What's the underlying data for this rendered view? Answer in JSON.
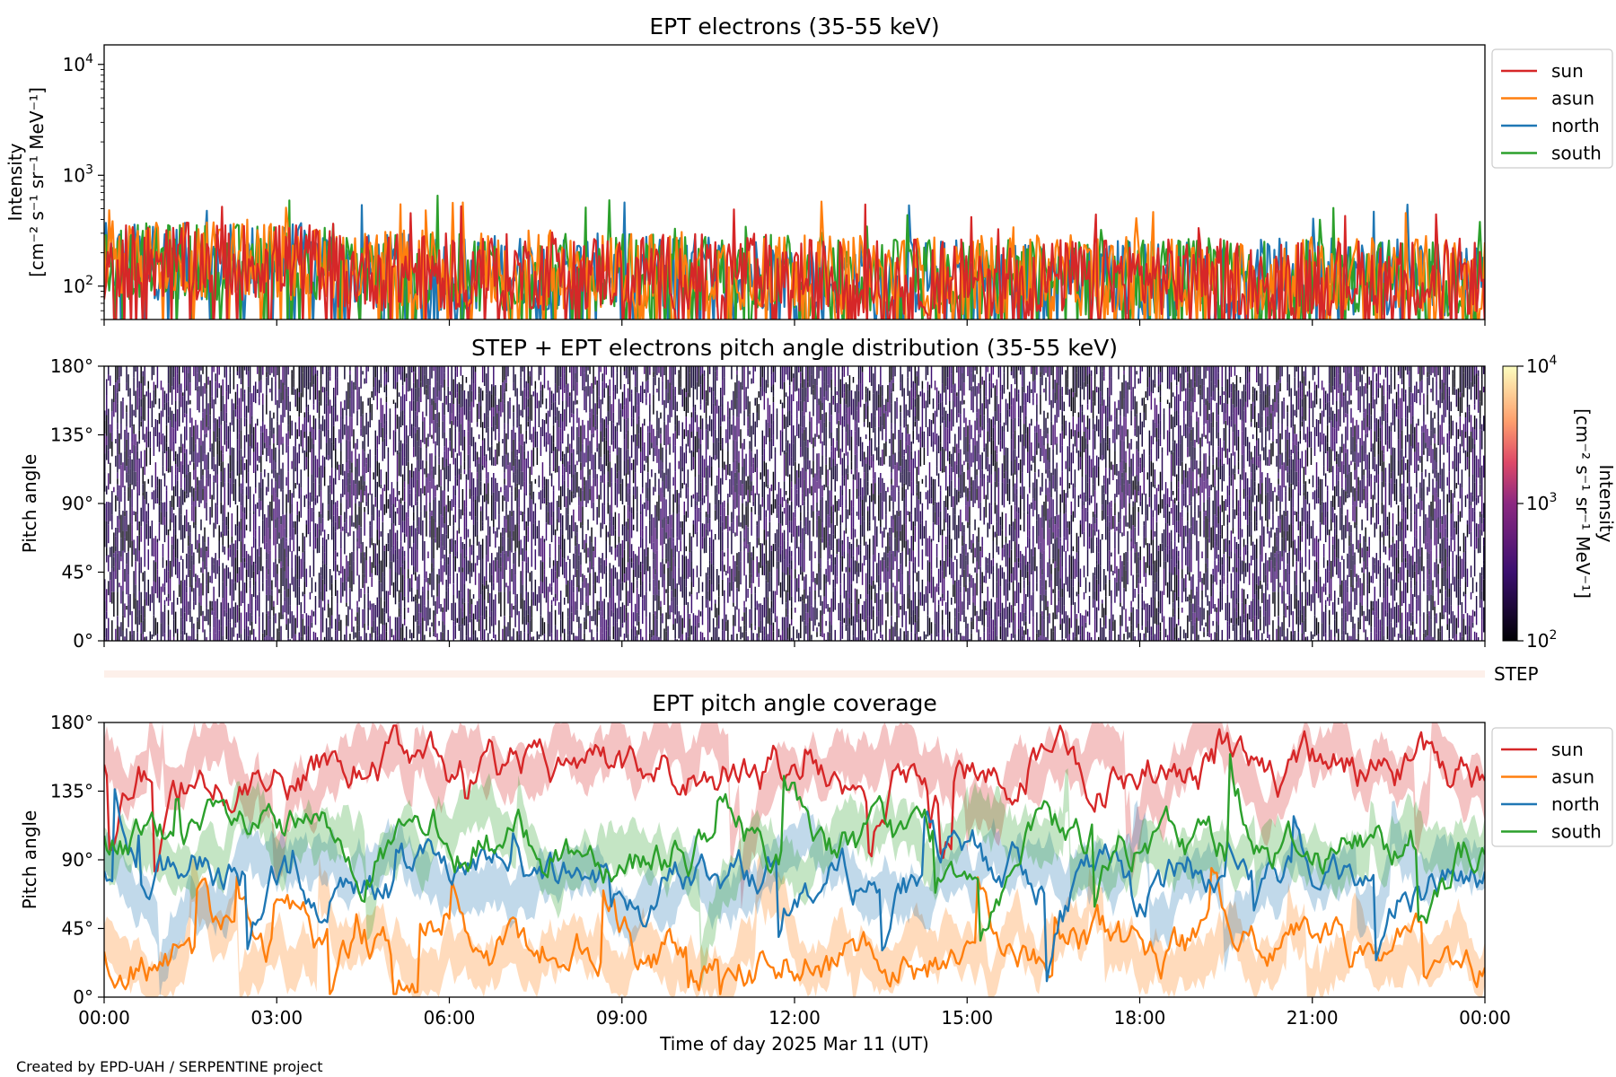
{
  "chart_data": [
    {
      "type": "line",
      "title": "EPT electrons (35-55 keV)",
      "ylabel_line1": "Intensity",
      "ylabel_line2": "[cm⁻² s⁻¹ sr⁻¹ MeV⁻¹]",
      "yscale": "log",
      "ylim": [
        50,
        15000
      ],
      "yticks": [
        {
          "value": 100,
          "base": "10",
          "exp": "2"
        },
        {
          "value": 1000,
          "base": "10",
          "exp": "3"
        },
        {
          "value": 10000,
          "base": "10",
          "exp": "4"
        }
      ],
      "x_hours": [
        0,
        24
      ],
      "legend_placement": "outside-right-top",
      "series": [
        {
          "name": "north",
          "color": "#1f77b4",
          "typical_range": [
            60,
            300
          ],
          "max": 600
        },
        {
          "name": "south",
          "color": "#2ca02c",
          "typical_range": [
            60,
            300
          ],
          "max": 700
        },
        {
          "name": "asun",
          "color": "#ff7f0e",
          "typical_range": [
            60,
            320
          ],
          "max": 600
        },
        {
          "name": "sun",
          "color": "#d62728",
          "typical_range": [
            60,
            300
          ],
          "max": 550
        }
      ],
      "legend_order": [
        "sun",
        "asun",
        "north",
        "south"
      ]
    },
    {
      "type": "heatmap",
      "title": "STEP + EPT electrons pitch angle distribution (35-55 keV)",
      "ylabel": "Pitch angle",
      "ylim": [
        0,
        180
      ],
      "yticks": [
        "0°",
        "45°",
        "90°",
        "135°",
        "180°"
      ],
      "x_hours": [
        0,
        24
      ],
      "colorbar": {
        "label": "Intensity",
        "units": "[cm⁻² s⁻¹ sr⁻¹ MeV⁻¹]",
        "scale": "log",
        "range": [
          100,
          10000
        ],
        "ticks": [
          {
            "base": "10",
            "exp": "2"
          },
          {
            "base": "10",
            "exp": "3"
          },
          {
            "base": "10",
            "exp": "4"
          }
        ]
      }
    },
    {
      "type": "line",
      "title": "STEP",
      "note": "empty strip"
    },
    {
      "type": "line",
      "title": "EPT pitch angle coverage",
      "ylabel": "Pitch angle",
      "ylim": [
        0,
        180
      ],
      "yticks": [
        "0°",
        "45°",
        "90°",
        "135°",
        "180°"
      ],
      "x_hours": [
        0,
        24
      ],
      "xticks": [
        "00:00",
        "03:00",
        "06:00",
        "09:00",
        "12:00",
        "15:00",
        "18:00",
        "21:00",
        "00:00"
      ],
      "xlabel": "Time of day 2025 Mar 11 (UT)",
      "legend_placement": "outside-right-top",
      "series": [
        {
          "name": "sun",
          "color": "#d62728",
          "typical_mean": 150
        },
        {
          "name": "asun",
          "color": "#ff7f0e",
          "typical_mean": 30
        },
        {
          "name": "north",
          "color": "#1f77b4",
          "typical_mean": 80
        },
        {
          "name": "south",
          "color": "#2ca02c",
          "typical_mean": 100
        }
      ]
    }
  ],
  "footer": "Created by EPD-UAH / SERPENTINE project",
  "colors": {
    "sun": "#d62728",
    "asun": "#ff7f0e",
    "north": "#1f77b4",
    "south": "#2ca02c"
  }
}
